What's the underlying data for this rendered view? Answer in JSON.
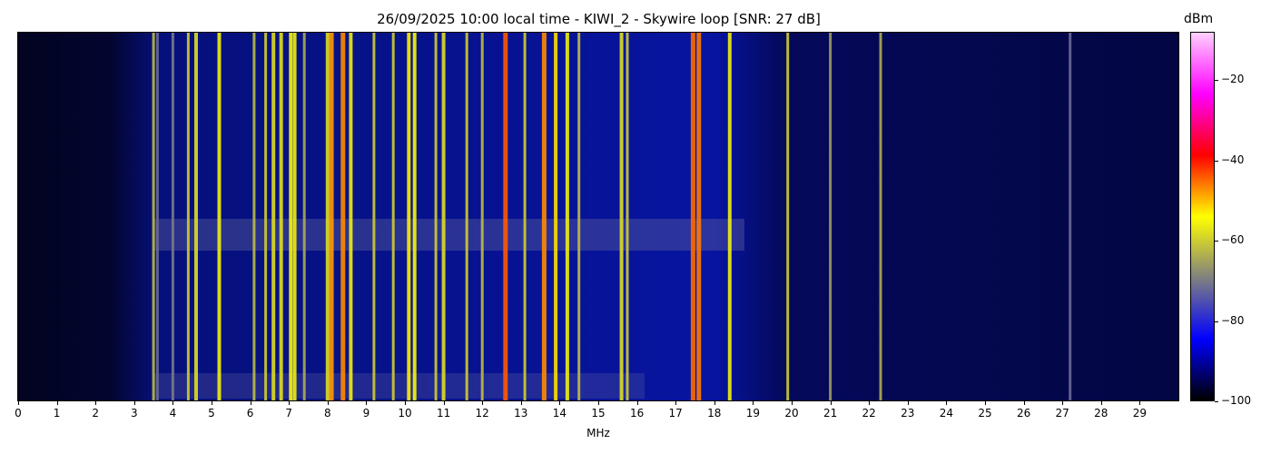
{
  "chart_data": {
    "type": "heatmap",
    "title": "26/09/2025 10:00 local time - KIWI_2 - Skywire loop [SNR: 27 dB]",
    "xlabel": "MHz",
    "xlim": [
      0,
      30
    ],
    "x_ticks": [
      "0",
      "1",
      "2",
      "3",
      "4",
      "5",
      "6",
      "7",
      "8",
      "9",
      "10",
      "11",
      "12",
      "13",
      "14",
      "15",
      "16",
      "17",
      "18",
      "19",
      "20",
      "21",
      "22",
      "23",
      "24",
      "25",
      "26",
      "27",
      "28",
      "29"
    ],
    "colorbar": {
      "unit": "dBm",
      "range": [
        -100,
        -8
      ],
      "ticks": [
        "−20",
        "−40",
        "−60",
        "−80",
        "−100"
      ],
      "tick_values": [
        -20,
        -40,
        -60,
        -80,
        -100
      ],
      "colors": [
        "#000000",
        "#0000ff",
        "#808080",
        "#ffff00",
        "#ff0000",
        "#ff00ff",
        "#ffd0ff"
      ]
    },
    "signals": [
      {
        "mhz": 3.5,
        "dbm": -62
      },
      {
        "mhz": 3.6,
        "dbm": -72
      },
      {
        "mhz": 4.0,
        "dbm": -70
      },
      {
        "mhz": 4.4,
        "dbm": -60
      },
      {
        "mhz": 4.6,
        "dbm": -58
      },
      {
        "mhz": 5.2,
        "dbm": -56
      },
      {
        "mhz": 6.1,
        "dbm": -62
      },
      {
        "mhz": 6.4,
        "dbm": -60
      },
      {
        "mhz": 6.6,
        "dbm": -58
      },
      {
        "mhz": 6.8,
        "dbm": -58
      },
      {
        "mhz": 7.05,
        "dbm": -55
      },
      {
        "mhz": 7.15,
        "dbm": -56
      },
      {
        "mhz": 7.4,
        "dbm": -64
      },
      {
        "mhz": 8.0,
        "dbm": -58
      },
      {
        "mhz": 8.1,
        "dbm": -48
      },
      {
        "mhz": 8.4,
        "dbm": -47
      },
      {
        "mhz": 8.6,
        "dbm": -56
      },
      {
        "mhz": 9.2,
        "dbm": -60
      },
      {
        "mhz": 9.7,
        "dbm": -60
      },
      {
        "mhz": 10.1,
        "dbm": -53
      },
      {
        "mhz": 10.25,
        "dbm": -55
      },
      {
        "mhz": 10.8,
        "dbm": -60
      },
      {
        "mhz": 11.0,
        "dbm": -58
      },
      {
        "mhz": 11.6,
        "dbm": -60
      },
      {
        "mhz": 12.0,
        "dbm": -62
      },
      {
        "mhz": 12.6,
        "dbm": -44
      },
      {
        "mhz": 13.1,
        "dbm": -60
      },
      {
        "mhz": 13.6,
        "dbm": -47
      },
      {
        "mhz": 13.9,
        "dbm": -52
      },
      {
        "mhz": 14.2,
        "dbm": -56
      },
      {
        "mhz": 14.5,
        "dbm": -62
      },
      {
        "mhz": 15.6,
        "dbm": -58
      },
      {
        "mhz": 15.75,
        "dbm": -60
      },
      {
        "mhz": 17.45,
        "dbm": -45
      },
      {
        "mhz": 17.6,
        "dbm": -46
      },
      {
        "mhz": 18.4,
        "dbm": -56
      },
      {
        "mhz": 19.9,
        "dbm": -60
      },
      {
        "mhz": 21.0,
        "dbm": -66
      },
      {
        "mhz": 22.3,
        "dbm": -64
      },
      {
        "mhz": 27.2,
        "dbm": -72
      }
    ]
  }
}
